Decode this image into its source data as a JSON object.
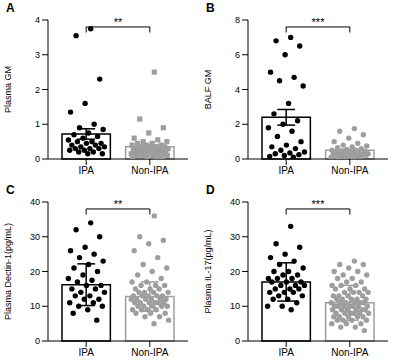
{
  "chart_data": [
    {
      "type": "bar",
      "title": "A",
      "ylabel": "Plasma GM",
      "ylim": [
        0,
        4
      ],
      "yticks": [
        0,
        1,
        2,
        3,
        4
      ],
      "annotation": "**",
      "series": [
        {
          "name": "IPA",
          "color": "#000000",
          "marker": "circle",
          "value": 0.72,
          "error": 0.15,
          "points": [
            3.75,
            3.55,
            2.3,
            1.6,
            1.35,
            1.0,
            0.9,
            0.85,
            0.75,
            0.7,
            0.65,
            0.6,
            0.55,
            0.5,
            0.5,
            0.45,
            0.45,
            0.4,
            0.4,
            0.35,
            0.35,
            0.3,
            0.3,
            0.3,
            0.25,
            0.25,
            0.2,
            0.2,
            0.15,
            0.15
          ]
        },
        {
          "name": "Non-IPA",
          "color": "#9e9e9e",
          "marker": "square",
          "value": 0.35,
          "error": 0.06,
          "points": [
            2.5,
            1.15,
            0.9,
            0.75,
            0.6,
            0.55,
            0.5,
            0.5,
            0.45,
            0.45,
            0.4,
            0.4,
            0.4,
            0.35,
            0.35,
            0.35,
            0.35,
            0.3,
            0.3,
            0.3,
            0.3,
            0.3,
            0.25,
            0.25,
            0.25,
            0.25,
            0.25,
            0.2,
            0.2,
            0.2,
            0.2,
            0.2,
            0.2,
            0.15,
            0.15,
            0.15,
            0.15,
            0.15,
            0.1,
            0.1,
            0.1,
            0.1,
            0.1,
            0.1,
            0.05,
            0.05,
            0.05,
            0.05
          ]
        }
      ]
    },
    {
      "type": "bar",
      "title": "B",
      "ylabel": "BALF GM",
      "ylim": [
        0,
        8
      ],
      "yticks": [
        0,
        2,
        4,
        6,
        8
      ],
      "annotation": "***",
      "series": [
        {
          "name": "IPA",
          "color": "#000000",
          "marker": "circle",
          "value": 2.4,
          "error": 0.45,
          "points": [
            7.0,
            6.8,
            6.5,
            6.0,
            5.0,
            4.7,
            4.5,
            4.2,
            3.2,
            2.6,
            2.2,
            2.0,
            1.8,
            1.6,
            1.3,
            1.0,
            0.8,
            0.7,
            0.6,
            0.5,
            0.4,
            0.35,
            0.3,
            0.25,
            0.2,
            0.15,
            0.1
          ]
        },
        {
          "name": "Non-IPA",
          "color": "#9e9e9e",
          "marker": "circle",
          "value": 0.5,
          "error": 0.07,
          "points": [
            1.75,
            1.6,
            1.4,
            1.2,
            1.0,
            0.9,
            0.8,
            0.75,
            0.7,
            0.65,
            0.6,
            0.55,
            0.5,
            0.5,
            0.45,
            0.45,
            0.4,
            0.4,
            0.35,
            0.35,
            0.3,
            0.3,
            0.3,
            0.25,
            0.25,
            0.25,
            0.2,
            0.2,
            0.2,
            0.15,
            0.15,
            0.15,
            0.1,
            0.1,
            0.1,
            0.1
          ]
        }
      ]
    },
    {
      "type": "bar",
      "title": "C",
      "ylabel": "Plasma Dectin-1(pg/mL)",
      "ylim": [
        0,
        40
      ],
      "yticks": [
        0,
        10,
        20,
        30,
        40
      ],
      "annotation": "**",
      "series": [
        {
          "name": "IPA",
          "color": "#000000",
          "marker": "circle",
          "value": 16.2,
          "error": 6,
          "points": [
            34,
            32,
            30,
            27,
            26,
            25,
            24,
            23,
            22,
            21,
            20,
            19,
            18,
            17.5,
            17,
            16,
            16,
            15,
            15,
            14,
            14,
            13,
            13,
            12,
            12,
            11,
            11,
            10,
            10,
            9,
            8,
            6
          ]
        },
        {
          "name": "Non-IPA",
          "color": "#9e9e9e",
          "marker": "circle",
          "value": 12.8,
          "error": 4.2,
          "points": [
            36,
            30,
            29,
            28,
            26,
            24,
            22,
            21,
            20,
            19,
            18,
            17,
            17,
            16,
            16,
            16,
            15,
            15,
            15,
            14,
            14,
            14,
            14,
            13,
            13,
            13,
            13,
            13,
            12,
            12,
            12,
            12,
            12,
            12,
            11,
            11,
            11,
            11,
            11,
            11,
            10,
            10,
            10,
            10,
            10,
            9,
            9,
            9,
            9,
            8,
            8,
            8,
            7,
            7,
            6,
            5
          ]
        }
      ]
    },
    {
      "type": "bar",
      "title": "D",
      "ylabel": "Plasma IL-17(pg/mL)",
      "ylim": [
        0,
        40
      ],
      "yticks": [
        0,
        10,
        20,
        30,
        40
      ],
      "annotation": "***",
      "series": [
        {
          "name": "IPA",
          "color": "#000000",
          "marker": "circle",
          "value": 17,
          "error": 5.5,
          "points": [
            33,
            28,
            27,
            25,
            24,
            23,
            22,
            21,
            20,
            20,
            19,
            19,
            18,
            18,
            18,
            17,
            17,
            17,
            16,
            16,
            16,
            15,
            15,
            15,
            14,
            14,
            14,
            13,
            13,
            12,
            12,
            11,
            10,
            10,
            9
          ]
        },
        {
          "name": "Non-IPA",
          "color": "#9e9e9e",
          "marker": "circle",
          "value": 11,
          "error": 5,
          "points": [
            23,
            22,
            22,
            21,
            20,
            20,
            19,
            19,
            18,
            18,
            17,
            17,
            16,
            16,
            16,
            15,
            15,
            15,
            14,
            14,
            14,
            14,
            13,
            13,
            13,
            13,
            12,
            12,
            12,
            12,
            12,
            11,
            11,
            11,
            11,
            11,
            11,
            10,
            10,
            10,
            10,
            10,
            10,
            10,
            9,
            9,
            9,
            9,
            9,
            9,
            8,
            8,
            8,
            8,
            8,
            8,
            7,
            7,
            7,
            7,
            7,
            6,
            6,
            6,
            6,
            5,
            5,
            5,
            4,
            4,
            3
          ]
        }
      ]
    }
  ]
}
